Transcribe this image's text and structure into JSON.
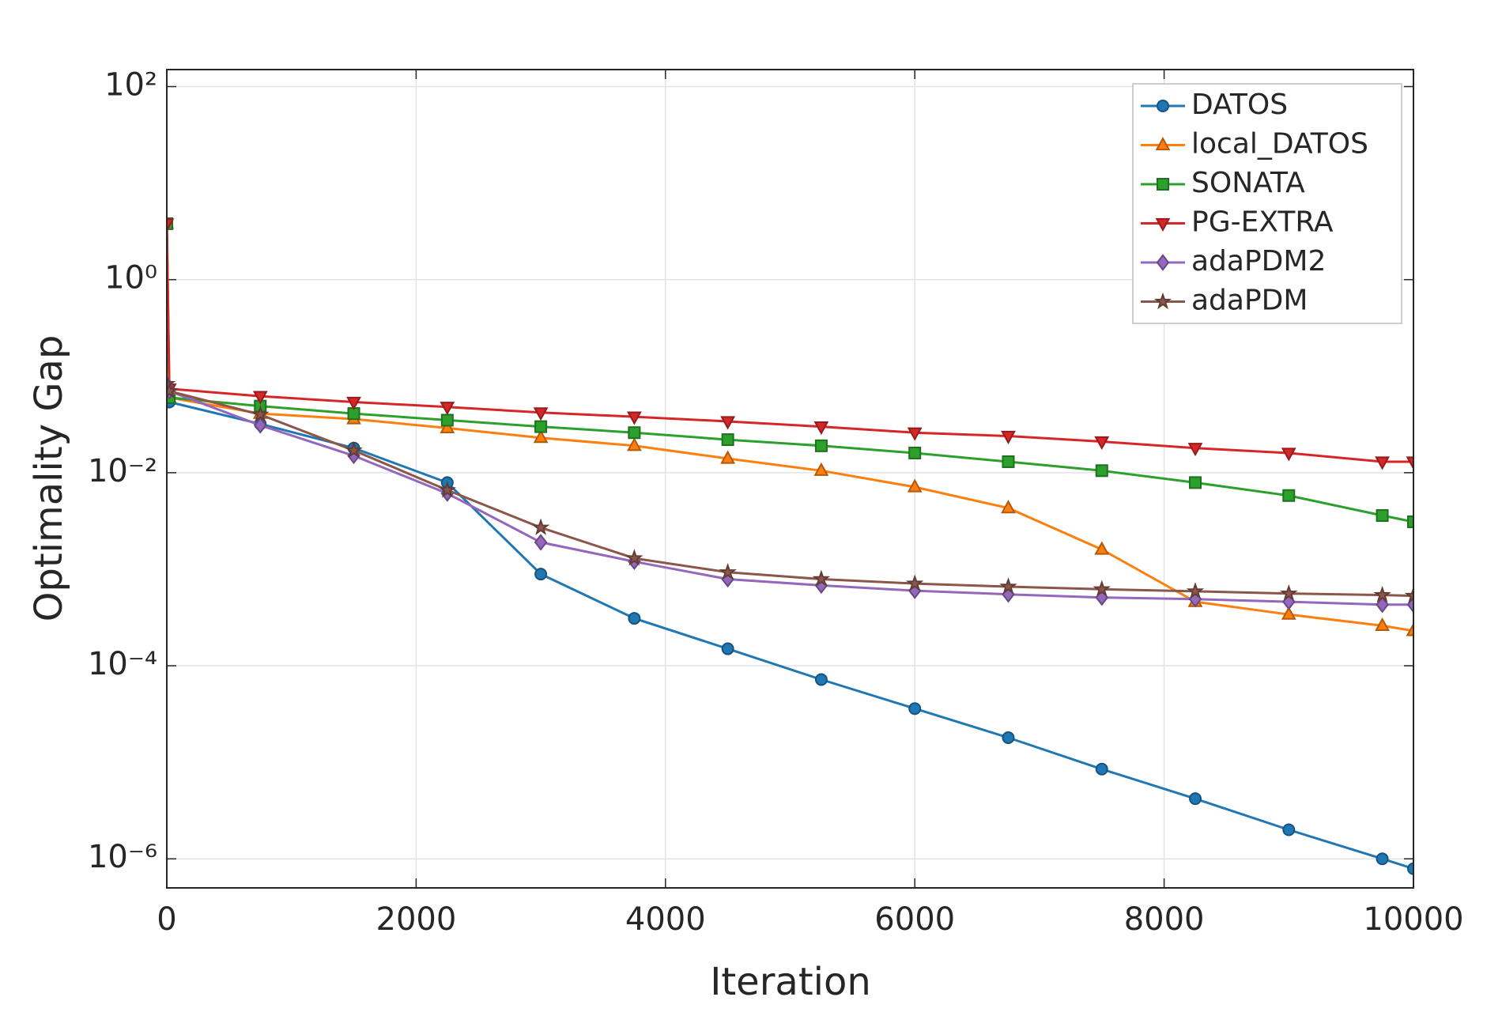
{
  "chart_data": {
    "type": "line",
    "xlabel": "Iteration",
    "ylabel": "Optimality Gap",
    "x": [
      0,
      20,
      750,
      1500,
      2250,
      3000,
      3750,
      4500,
      5250,
      6000,
      6750,
      7500,
      8250,
      9000,
      9750,
      10000
    ],
    "series": [
      {
        "name": "DATOS",
        "color": "#1f77b4",
        "marker": "circle",
        "values": [
          0.055,
          0.054,
          0.032,
          0.018,
          0.0079,
          0.00089,
          0.00031,
          0.00015,
          7.2e-05,
          3.6e-05,
          1.8e-05,
          8.5e-06,
          4.2e-06,
          2e-06,
          1e-06,
          7.9e-07
        ]
      },
      {
        "name": "local_DATOS",
        "color": "#ff7f0e",
        "marker": "triangle-up",
        "values": [
          3.8,
          0.06,
          0.041,
          0.036,
          0.029,
          0.023,
          0.019,
          0.014,
          0.0105,
          0.0071,
          0.0043,
          0.0016,
          0.00046,
          0.00034,
          0.00026,
          0.00023
        ]
      },
      {
        "name": "SONATA",
        "color": "#2ca02c",
        "marker": "square",
        "values": [
          3.8,
          0.06,
          0.049,
          0.041,
          0.035,
          0.03,
          0.026,
          0.022,
          0.019,
          0.016,
          0.013,
          0.0105,
          0.0079,
          0.0058,
          0.0036,
          0.0031
        ]
      },
      {
        "name": "PG-EXTRA",
        "color": "#d62728",
        "marker": "triangle-down",
        "values": [
          3.8,
          0.074,
          0.062,
          0.054,
          0.048,
          0.042,
          0.038,
          0.034,
          0.03,
          0.026,
          0.024,
          0.021,
          0.018,
          0.016,
          0.013,
          0.013
        ]
      },
      {
        "name": "adaPDM2",
        "color": "#9467bd",
        "marker": "diamond",
        "values": [
          0.083,
          0.07,
          0.031,
          0.015,
          0.0061,
          0.0019,
          0.0012,
          0.00079,
          0.00068,
          0.0006,
          0.00055,
          0.00051,
          0.00049,
          0.00046,
          0.00043,
          0.00043
        ]
      },
      {
        "name": "adaPDM",
        "color": "#8c564b",
        "marker": "star",
        "values": [
          0.083,
          0.07,
          0.04,
          0.017,
          0.0066,
          0.0027,
          0.0013,
          0.00093,
          0.00079,
          0.00071,
          0.00066,
          0.00062,
          0.00059,
          0.00056,
          0.00054,
          0.00053
        ]
      }
    ],
    "xlim": [
      0,
      10000
    ],
    "xticks": [
      0,
      2000,
      4000,
      6000,
      8000,
      10000
    ],
    "ylim": [
      5e-07,
      150
    ],
    "yscale": "log",
    "yticks": [
      {
        "value": 1e-06,
        "label": "10⁻⁶"
      },
      {
        "value": 0.0001,
        "label": "10⁻⁴"
      },
      {
        "value": 0.01,
        "label": "10⁻²"
      },
      {
        "value": 1,
        "label": "10⁰"
      },
      {
        "value": 100,
        "label": "10²"
      }
    ],
    "grid": true,
    "legend": "upper right"
  }
}
